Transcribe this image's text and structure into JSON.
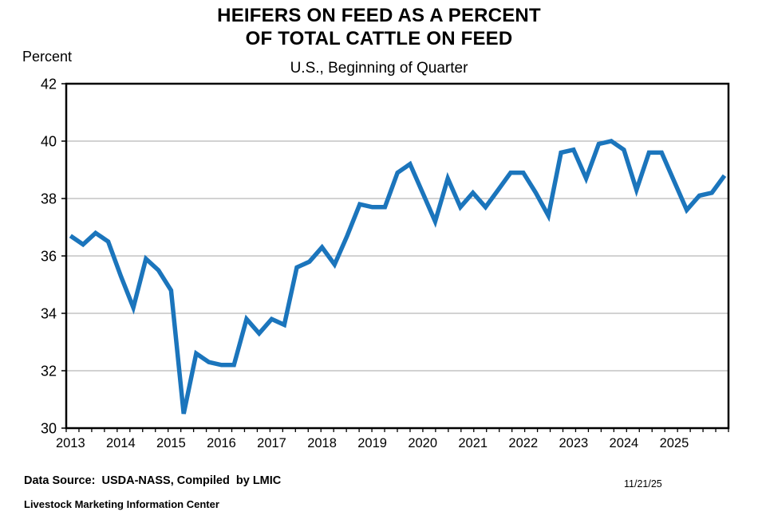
{
  "header": {
    "title_line1": "HEIFERS ON FEED AS A PERCENT",
    "title_line2": "OF TOTAL CATTLE ON FEED",
    "subtitle": "U.S., Beginning of Quarter",
    "y_axis_unit_label": "Percent"
  },
  "footer": {
    "data_source": "Data Source:  USDA-NASS, Compiled  by LMIC",
    "date": "11/21/25",
    "organization": "Livestock Marketing Information Center"
  },
  "chart_data": {
    "type": "line",
    "title": "HEIFERS ON FEED AS A PERCENT OF TOTAL CATTLE ON FEED",
    "subtitle": "U.S., Beginning of Quarter",
    "xlabel": "",
    "ylabel": "Percent",
    "ylim": [
      30,
      42
    ],
    "yticks": [
      30,
      32,
      34,
      36,
      38,
      40,
      42
    ],
    "grid": "horizontal",
    "legend": "none",
    "line_color": "#1B75BC",
    "grid_color": "#A6A6A6",
    "axis_color": "#000000",
    "x_year_labels": [
      "2013",
      "2014",
      "2015",
      "2016",
      "2017",
      "2018",
      "2019",
      "2020",
      "2021",
      "2022",
      "2023",
      "2024",
      "2025"
    ],
    "x_label_every_n_points": 4,
    "quarters": [
      "2013 Q1",
      "2013 Q2",
      "2013 Q3",
      "2013 Q4",
      "2014 Q1",
      "2014 Q2",
      "2014 Q3",
      "2014 Q4",
      "2015 Q1",
      "2015 Q2",
      "2015 Q3",
      "2015 Q4",
      "2016 Q1",
      "2016 Q2",
      "2016 Q3",
      "2016 Q4",
      "2017 Q1",
      "2017 Q2",
      "2017 Q3",
      "2017 Q4",
      "2018 Q1",
      "2018 Q2",
      "2018 Q3",
      "2018 Q4",
      "2019 Q1",
      "2019 Q2",
      "2019 Q3",
      "2019 Q4",
      "2020 Q1",
      "2020 Q2",
      "2020 Q3",
      "2020 Q4",
      "2021 Q1",
      "2021 Q2",
      "2021 Q3",
      "2021 Q4",
      "2022 Q1",
      "2022 Q2",
      "2022 Q3",
      "2022 Q4",
      "2023 Q1",
      "2023 Q2",
      "2023 Q3",
      "2023 Q4",
      "2024 Q1",
      "2024 Q2",
      "2024 Q3",
      "2024 Q4",
      "2025 Q1",
      "2025 Q2",
      "2025 Q3",
      "2025 Q4",
      "2026 Q1"
    ],
    "values": [
      36.7,
      36.4,
      36.8,
      36.5,
      35.3,
      34.2,
      35.9,
      35.5,
      34.8,
      30.5,
      32.6,
      32.3,
      32.2,
      32.2,
      33.8,
      33.3,
      33.8,
      33.6,
      35.6,
      35.8,
      36.3,
      35.7,
      36.7,
      37.8,
      37.7,
      37.7,
      38.9,
      39.2,
      38.2,
      37.2,
      38.7,
      37.7,
      38.2,
      37.7,
      38.3,
      38.9,
      38.9,
      38.2,
      37.4,
      39.6,
      39.7,
      38.7,
      39.9,
      40.0,
      39.7,
      38.3,
      39.6,
      39.6,
      38.6,
      37.6,
      38.1,
      38.2,
      38.8
    ]
  }
}
